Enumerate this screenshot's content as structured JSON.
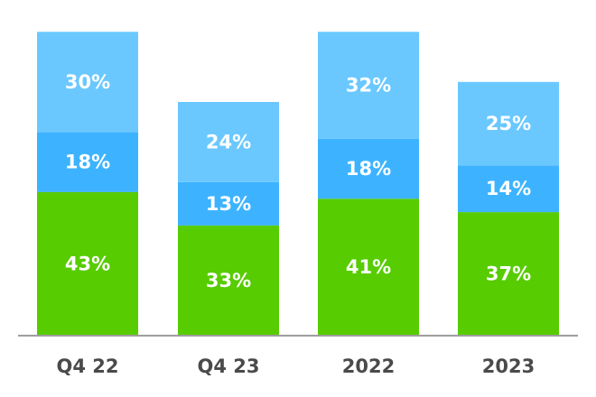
{
  "chart_data": {
    "type": "bar",
    "stacked": true,
    "categories": [
      "Q4 22",
      "Q4 23",
      "2022",
      "2023"
    ],
    "series": [
      {
        "values": [
          43,
          33,
          41,
          37
        ],
        "color": "#57cc00"
      },
      {
        "values": [
          18,
          13,
          18,
          14
        ],
        "color": "#3db3ff"
      },
      {
        "values": [
          30,
          24,
          32,
          25
        ],
        "color": "#6ac8ff"
      }
    ],
    "value_suffix": "%",
    "legend": "none",
    "grid": false,
    "axis_color": "#9e9e9e",
    "label_color": "#ffffff",
    "tick_color": "#4a4a4a"
  }
}
